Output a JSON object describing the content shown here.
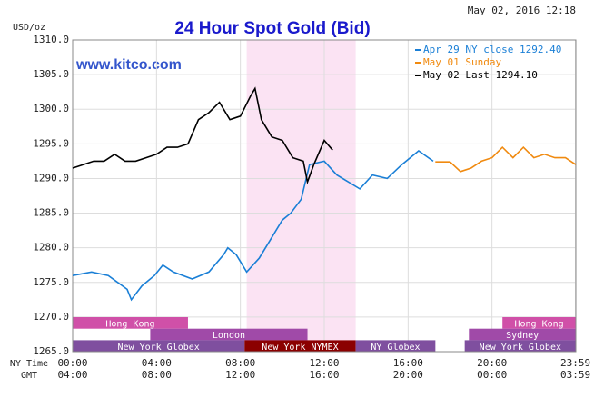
{
  "chart_data": {
    "type": "line",
    "title": "24 Hour Spot Gold (Bid)",
    "y_label": "USD/oz",
    "timestamp": "May 02, 2016 12:18",
    "watermark": "www.kitco.com",
    "x_label": "NY Time",
    "x2_label": "GMT",
    "xlim": [
      0,
      24
    ],
    "ylim": [
      1265,
      1310
    ],
    "xticks": [
      {
        "value": 0,
        "label": "00:00"
      },
      {
        "value": 4,
        "label": "04:00"
      },
      {
        "value": 8,
        "label": "08:00"
      },
      {
        "value": 12,
        "label": "12:00"
      },
      {
        "value": 16,
        "label": "16:00"
      },
      {
        "value": 20,
        "label": "20:00"
      },
      {
        "value": 23.98,
        "label": "23:59"
      }
    ],
    "x2ticks": [
      {
        "value": 0,
        "label": "04:00"
      },
      {
        "value": 4,
        "label": "08:00"
      },
      {
        "value": 8,
        "label": "12:00"
      },
      {
        "value": 12,
        "label": "16:00"
      },
      {
        "value": 16,
        "label": "20:00"
      },
      {
        "value": 20,
        "label": "00:00"
      },
      {
        "value": 23.98,
        "label": "03:59"
      }
    ],
    "yticks": [
      {
        "value": 1265,
        "label": "1265.0"
      },
      {
        "value": 1270,
        "label": "1270.0"
      },
      {
        "value": 1275,
        "label": "1275.0"
      },
      {
        "value": 1280,
        "label": "1280.0"
      },
      {
        "value": 1285,
        "label": "1285.0"
      },
      {
        "value": 1290,
        "label": "1290.0"
      },
      {
        "value": 1295,
        "label": "1295.0"
      },
      {
        "value": 1300,
        "label": "1300.0"
      },
      {
        "value": 1305,
        "label": "1305.0"
      },
      {
        "value": 1310,
        "label": "1310.0"
      }
    ],
    "grid": true,
    "highlight": [
      8.3,
      13.5
    ],
    "highlight_color": "#fbe3f3",
    "series": [
      {
        "name": "Apr 29 NY close 1292.40",
        "color": "#1a7fd6",
        "x": [
          0,
          0.9,
          1.7,
          2.6,
          2.8,
          3.3,
          3.9,
          4.3,
          4.8,
          5.7,
          6.5,
          7.2,
          7.4,
          7.8,
          8.3,
          8.9,
          9.6,
          10,
          10.4,
          10.9,
          11.3,
          12,
          12.6,
          13.7,
          14.3,
          15,
          15.7,
          16.5,
          17.2
        ],
        "values": [
          1276,
          1276.5,
          1276,
          1274,
          1272.5,
          1274.5,
          1276,
          1277.5,
          1276.5,
          1275.5,
          1276.5,
          1279,
          1280,
          1279,
          1276.5,
          1278.5,
          1282,
          1284,
          1285,
          1287,
          1292,
          1292.5,
          1290.5,
          1288.5,
          1290.5,
          1290,
          1292,
          1294,
          1292.5
        ]
      },
      {
        "name": "May 01 Sunday",
        "color": "#f08a10",
        "x": [
          17.3,
          18,
          18.5,
          19,
          19.5,
          20,
          20.5,
          21,
          21.5,
          22,
          22.5,
          23,
          23.5,
          24
        ],
        "values": [
          1292.4,
          1292.4,
          1291,
          1291.5,
          1292.5,
          1293,
          1294.5,
          1293,
          1294.5,
          1293,
          1293.5,
          1293,
          1293,
          1292
        ]
      },
      {
        "name": "May 02 Last 1294.10",
        "color": "#000000",
        "x": [
          0,
          0.5,
          1,
          1.5,
          2,
          2.5,
          3,
          3.5,
          4,
          4.5,
          5,
          5.5,
          6,
          6.5,
          7,
          7.5,
          8,
          8.5,
          8.7,
          9,
          9.5,
          10,
          10.5,
          11,
          11.2,
          11.5,
          12,
          12.4
        ],
        "values": [
          1291.5,
          1292,
          1292.5,
          1292.5,
          1293.5,
          1292.5,
          1292.5,
          1293,
          1293.5,
          1294.5,
          1294.5,
          1295,
          1298.5,
          1299.5,
          1301,
          1298.5,
          1299,
          1302,
          1303,
          1298.5,
          1296,
          1295.5,
          1293,
          1292.5,
          1289.5,
          1292,
          1295.5,
          1294.1
        ]
      }
    ],
    "sessions": [
      {
        "label": "Hong Kong",
        "start": 0,
        "end": 5.5,
        "row": 0,
        "color": "#d050a8"
      },
      {
        "label": "Hong Kong",
        "start": 20.5,
        "end": 24,
        "row": 0,
        "color": "#d050a8"
      },
      {
        "label": "London",
        "start": 3.7,
        "end": 11.2,
        "row": 1,
        "color": "#a04aa8"
      },
      {
        "label": "Sydney",
        "start": 18.9,
        "end": 24,
        "row": 1,
        "color": "#a04aa8"
      },
      {
        "label": "New York Globex",
        "start": 0,
        "end": 8.2,
        "row": 2,
        "color": "#7f4f9f"
      },
      {
        "label": "New York NYMEX",
        "start": 8.2,
        "end": 13.5,
        "row": 2,
        "color": "#8b0000"
      },
      {
        "label": "NY Globex",
        "start": 13.5,
        "end": 17.3,
        "row": 2,
        "color": "#7f4f9f"
      },
      {
        "label": "New York Globex",
        "start": 18.7,
        "end": 24,
        "row": 2,
        "color": "#7f4f9f"
      }
    ]
  }
}
